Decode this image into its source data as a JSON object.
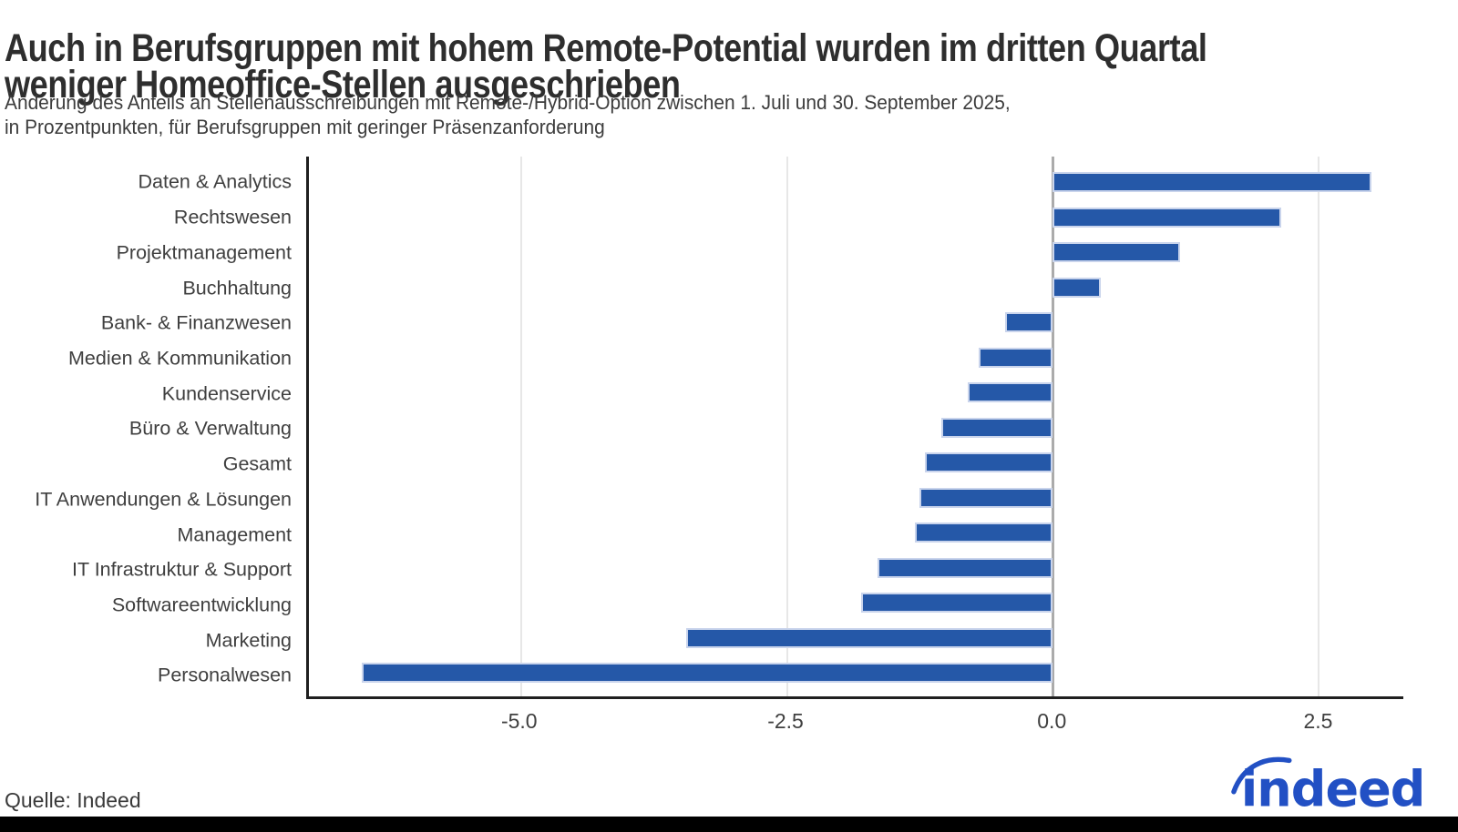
{
  "header": {
    "title": "Auch in Berufsgruppen mit hohem Remote-Potential wurden im dritten Quartal\nweniger Homeoffice-Stellen ausgeschrieben",
    "subtitle": "Änderung des Anteils an Stellenausschreibungen mit Remote-/Hybrid-Option zwischen 1. Juli und 30. September 2025,\nin Prozentpunkten, für Berufsgruppen mit geringer Präsenzanforderung"
  },
  "footer": {
    "source": "Quelle: Indeed",
    "logo_text": "indeed"
  },
  "colors": {
    "bar_fill": "#2558a8",
    "bar_stroke": "#c9d4ec",
    "gridline": "#e7e7e7",
    "zero_line": "#ababab",
    "axis_spine": "#1f1f1f",
    "logo_blue": "#2250c4",
    "title_text": "#2e2e2e",
    "body_text": "#3c3c3c",
    "bottom_bar": "#000000"
  },
  "chart_data": {
    "type": "bar",
    "orientation": "horizontal",
    "title": "Auch in Berufsgruppen mit hohem Remote-Potential wurden im dritten Quartal weniger Homeoffice-Stellen ausgeschrieben",
    "xlabel": "",
    "ylabel": "",
    "unit": "Prozentpunkte",
    "grid": "vertical",
    "legend": null,
    "categories": [
      "Daten & Analytics",
      "Rechtswesen",
      "Projektmanagement",
      "Buchhaltung",
      "Bank- & Finanzwesen",
      "Medien & Kommunikation",
      "Kundenservice",
      "Büro & Verwaltung",
      "Gesamt",
      "IT Anwendungen & Lösungen",
      "Management",
      "IT Infrastruktur & Support",
      "Softwareentwicklung",
      "Marketing",
      "Personalwesen"
    ],
    "values": [
      3.0,
      2.15,
      1.2,
      0.45,
      -0.45,
      -0.7,
      -0.8,
      -1.05,
      -1.2,
      -1.25,
      -1.3,
      -1.65,
      -1.8,
      -3.45,
      -6.5
    ],
    "xtick_values": [
      -5.0,
      -2.5,
      0.0,
      2.5
    ],
    "xtick_labels": [
      "-5.0",
      "-2.5",
      "0.0",
      "2.5"
    ],
    "xlim": [
      -7.0,
      3.3
    ]
  }
}
